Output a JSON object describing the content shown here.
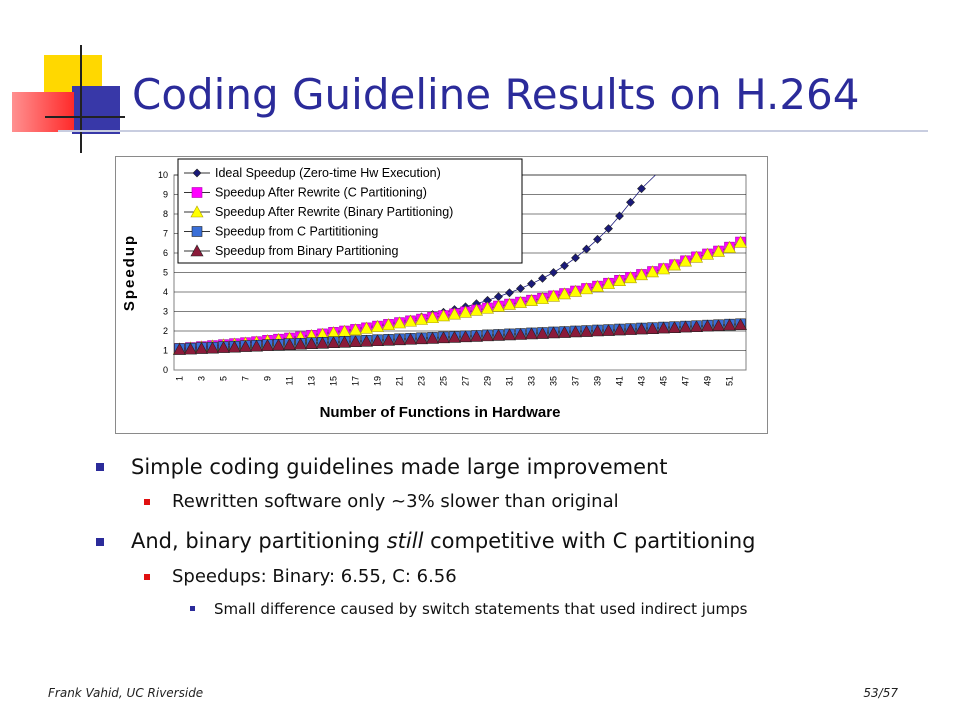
{
  "slide": {
    "title": "Coding Guideline Results on H.264",
    "bullets": [
      {
        "text": "Simple coding guidelines made large improvement"
      },
      {
        "text": "Rewritten software only ~3% slower than original"
      },
      {
        "text_before": "And, binary partitioning ",
        "text_italic": "still",
        "text_after": " competitive with C partitioning"
      },
      {
        "text": "Speedups: Binary: 6.55, C: 6.56"
      },
      {
        "text": "Small difference caused by switch statements that used indirect jumps"
      }
    ],
    "footer_left": "Frank Vahid, UC Riverside",
    "footer_right": "53/57",
    "colors": {
      "title": "#2b2b9a",
      "bullet_l1": "#2b2b9a",
      "bullet_l2": "#e01010"
    }
  },
  "chart_data": {
    "type": "line",
    "xlabel": "Number of Functions in Hardware",
    "ylabel": "Speedup",
    "ylim": [
      0,
      10
    ],
    "y_ticks": [
      "0",
      "1",
      "2",
      "3",
      "4",
      "5",
      "6",
      "7",
      "8",
      "9",
      "10"
    ],
    "x_ticks": [
      "1",
      "3",
      "5",
      "7",
      "9",
      "11",
      "13",
      "15",
      "17",
      "19",
      "21",
      "23",
      "25",
      "27",
      "29",
      "31",
      "33",
      "35",
      "37",
      "39",
      "41",
      "43",
      "45",
      "47",
      "49",
      "51"
    ],
    "x_count": 52,
    "grid": true,
    "legend_position": "top-left",
    "series": [
      {
        "name": "Ideal Speedup (Zero-time Hw Execution)",
        "color": "#1a1a7a",
        "marker": "diamond",
        "values": [
          1.1,
          1.15,
          1.2,
          1.25,
          1.3,
          1.36,
          1.42,
          1.48,
          1.54,
          1.6,
          1.67,
          1.74,
          1.81,
          1.88,
          1.96,
          2.04,
          2.12,
          2.21,
          2.3,
          2.4,
          2.5,
          2.6,
          2.72,
          2.84,
          2.96,
          3.1,
          3.24,
          3.4,
          3.57,
          3.76,
          3.96,
          4.18,
          4.42,
          4.7,
          5.0,
          5.35,
          5.75,
          6.2,
          6.7,
          7.25,
          7.9,
          8.6,
          9.3
        ]
      },
      {
        "name": "Speedup After Rewrite (C Partitioning)",
        "color": "#ff00ff",
        "marker": "square",
        "values": [
          1.1,
          1.15,
          1.2,
          1.25,
          1.3,
          1.35,
          1.4,
          1.45,
          1.52,
          1.58,
          1.64,
          1.7,
          1.78,
          1.85,
          1.93,
          2.0,
          2.08,
          2.16,
          2.25,
          2.34,
          2.43,
          2.52,
          2.61,
          2.7,
          2.79,
          2.88,
          2.98,
          3.08,
          3.18,
          3.28,
          3.38,
          3.48,
          3.58,
          3.68,
          3.8,
          3.92,
          4.05,
          4.18,
          4.3,
          4.45,
          4.6,
          4.75,
          4.9,
          5.05,
          5.2,
          5.4,
          5.6,
          5.8,
          5.95,
          6.1,
          6.3,
          6.56
        ]
      },
      {
        "name": "Speedup After Rewrite (Binary Partitioning)",
        "color": "#ffff00",
        "marker": "triangle",
        "values": [
          1.08,
          1.13,
          1.18,
          1.23,
          1.28,
          1.33,
          1.38,
          1.43,
          1.5,
          1.56,
          1.62,
          1.68,
          1.76,
          1.83,
          1.91,
          1.98,
          2.06,
          2.14,
          2.23,
          2.32,
          2.41,
          2.5,
          2.59,
          2.68,
          2.77,
          2.86,
          2.96,
          3.06,
          3.16,
          3.26,
          3.36,
          3.46,
          3.56,
          3.66,
          3.78,
          3.9,
          4.03,
          4.16,
          4.28,
          4.43,
          4.58,
          4.73,
          4.88,
          5.03,
          5.18,
          5.38,
          5.58,
          5.78,
          5.93,
          6.08,
          6.28,
          6.55
        ]
      },
      {
        "name": "Speedup from C Partititioning",
        "color": "#3a6fd8",
        "marker": "square",
        "values": [
          1.1,
          1.12,
          1.15,
          1.17,
          1.2,
          1.22,
          1.25,
          1.27,
          1.3,
          1.32,
          1.35,
          1.37,
          1.4,
          1.42,
          1.45,
          1.47,
          1.5,
          1.52,
          1.55,
          1.57,
          1.6,
          1.62,
          1.65,
          1.67,
          1.7,
          1.72,
          1.75,
          1.77,
          1.8,
          1.82,
          1.85,
          1.87,
          1.9,
          1.92,
          1.95,
          1.97,
          2.0,
          2.02,
          2.05,
          2.07,
          2.1,
          2.12,
          2.15,
          2.17,
          2.2,
          2.22,
          2.25,
          2.27,
          2.3,
          2.32,
          2.35,
          2.37
        ]
      },
      {
        "name": "Speedup from Binary Partitioning",
        "color": "#8b1a3a",
        "marker": "triangle",
        "values": [
          1.05,
          1.07,
          1.1,
          1.12,
          1.15,
          1.17,
          1.2,
          1.22,
          1.25,
          1.27,
          1.3,
          1.32,
          1.35,
          1.37,
          1.4,
          1.42,
          1.45,
          1.47,
          1.5,
          1.52,
          1.55,
          1.57,
          1.6,
          1.62,
          1.65,
          1.67,
          1.7,
          1.72,
          1.75,
          1.77,
          1.8,
          1.82,
          1.85,
          1.87,
          1.9,
          1.92,
          1.95,
          1.97,
          2.0,
          2.02,
          2.05,
          2.07,
          2.1,
          2.12,
          2.15,
          2.17,
          2.2,
          2.22,
          2.25,
          2.27,
          2.3,
          2.32
        ]
      }
    ]
  }
}
